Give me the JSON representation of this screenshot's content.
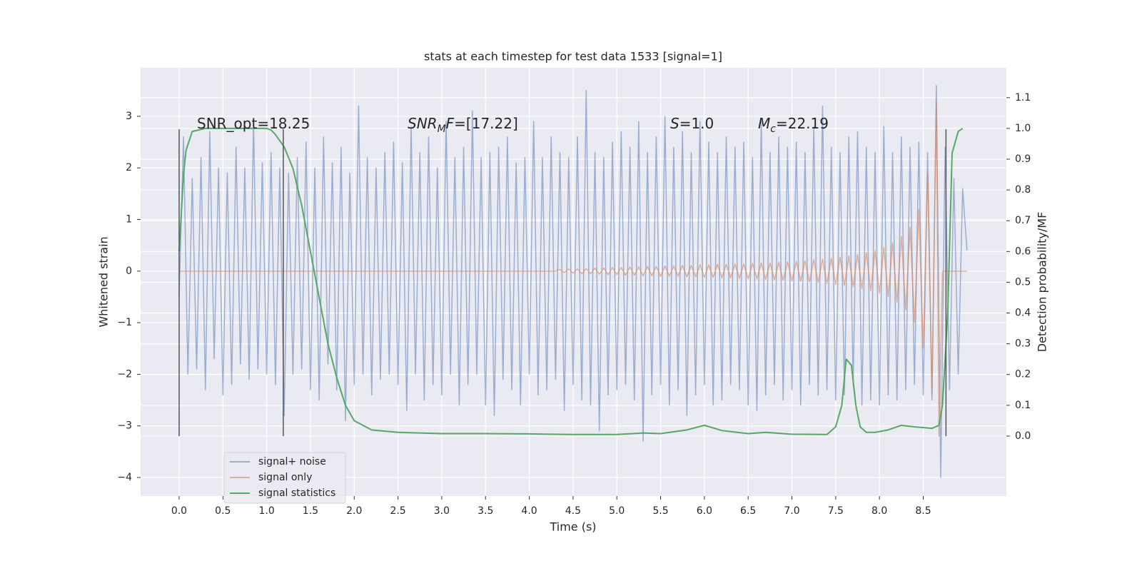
{
  "chart_data": {
    "type": "line",
    "title": "stats at each timestep for test data 1533 [signal=1]",
    "xlabel": "Time (s)",
    "ylabel": "Whitened strain",
    "y2label": "Detection probability/MF",
    "xlim": [
      -0.44,
      9.45
    ],
    "ylim": [
      -4.36,
      3.94
    ],
    "y2lim": [
      -0.195,
      1.197
    ],
    "xticks": [
      {
        "value": 0,
        "label": "0.0"
      },
      0.5,
      {
        "value": 1,
        "label": "1.0"
      },
      1.5,
      {
        "value": 2,
        "label": "2.0"
      },
      2.5,
      {
        "value": 3,
        "label": "3.0"
      },
      3.5,
      {
        "value": 4,
        "label": "4.0"
      },
      4.5,
      {
        "value": 5,
        "label": "5.0"
      },
      5.5,
      {
        "value": 6,
        "label": "6.0"
      },
      6.5,
      {
        "value": 7,
        "label": "7.0"
      },
      7.5,
      {
        "value": 8,
        "label": "8.0"
      },
      8.5
    ],
    "yticks": [
      {
        "value": -4,
        "label": "−4"
      },
      {
        "value": -3,
        "label": "−3"
      },
      {
        "value": -2,
        "label": "−2"
      },
      {
        "value": -1,
        "label": "−1"
      },
      0,
      1,
      2,
      3
    ],
    "y2ticks": [
      {
        "value": 0,
        "label": "0.0"
      },
      0.1,
      0.2,
      0.3,
      0.4,
      0.5,
      0.6,
      0.7,
      0.8,
      0.9,
      {
        "value": 1,
        "label": "1.0"
      },
      1.1
    ],
    "grid": true,
    "background": "#eaeaf2",
    "legend": "lower left",
    "series": [
      {
        "name": "signal+ noise",
        "color": "#4c72b0",
        "opacity": 0.5,
        "x": [
          0,
          0.05,
          0.1,
          0.15,
          0.2,
          0.25,
          0.3,
          0.35,
          0.4,
          0.45,
          0.5,
          0.55,
          0.6,
          0.65,
          0.7,
          0.75,
          0.8,
          0.85,
          0.9,
          0.95,
          1,
          1.05,
          1.1,
          1.15,
          1.2,
          1.25,
          1.3,
          1.35,
          1.4,
          1.45,
          1.5,
          1.55,
          1.6,
          1.65,
          1.7,
          1.75,
          1.8,
          1.85,
          1.9,
          1.95,
          2,
          2.05,
          2.1,
          2.15,
          2.2,
          2.25,
          2.3,
          2.35,
          2.4,
          2.45,
          2.5,
          2.55,
          2.6,
          2.65,
          2.7,
          2.75,
          2.8,
          2.85,
          2.9,
          2.95,
          3,
          3.05,
          3.1,
          3.15,
          3.2,
          3.25,
          3.3,
          3.35,
          3.4,
          3.45,
          3.5,
          3.55,
          3.6,
          3.65,
          3.7,
          3.75,
          3.8,
          3.85,
          3.9,
          3.95,
          4,
          4.05,
          4.1,
          4.15,
          4.2,
          4.25,
          4.3,
          4.35,
          4.4,
          4.45,
          4.5,
          4.55,
          4.6,
          4.65,
          4.7,
          4.75,
          4.8,
          4.85,
          4.9,
          4.95,
          5,
          5.05,
          5.1,
          5.15,
          5.2,
          5.25,
          5.3,
          5.35,
          5.4,
          5.45,
          5.5,
          5.55,
          5.6,
          5.65,
          5.7,
          5.75,
          5.8,
          5.85,
          5.9,
          5.95,
          6,
          6.05,
          6.1,
          6.15,
          6.2,
          6.25,
          6.3,
          6.35,
          6.4,
          6.45,
          6.5,
          6.55,
          6.6,
          6.65,
          6.7,
          6.75,
          6.8,
          6.85,
          6.9,
          6.95,
          7,
          7.05,
          7.1,
          7.15,
          7.2,
          7.25,
          7.3,
          7.35,
          7.4,
          7.45,
          7.5,
          7.55,
          7.6,
          7.65,
          7.7,
          7.75,
          7.8,
          7.85,
          7.9,
          7.95,
          8,
          8.05,
          8.1,
          8.15,
          8.2,
          8.25,
          8.3,
          8.35,
          8.4,
          8.45,
          8.5,
          8.55,
          8.6,
          8.65,
          8.7,
          8.75,
          8.8,
          8.85,
          8.9,
          8.95,
          9
        ],
        "values": [
          -0.5,
          2.6,
          -2.0,
          1.8,
          -1.9,
          2.2,
          -2.3,
          2.7,
          -1.7,
          2.0,
          -2.4,
          1.9,
          -2.2,
          2.4,
          -1.8,
          2.0,
          -2.1,
          2.9,
          -1.9,
          2.1,
          -2.0,
          2.3,
          -2.2,
          2.0,
          -2.8,
          1.9,
          -2.0,
          2.2,
          -1.9,
          2.5,
          -2.3,
          2.0,
          -2.5,
          2.6,
          -1.8,
          2.1,
          -2.3,
          2.4,
          -2.9,
          1.9,
          -2.2,
          3.2,
          -2.0,
          2.2,
          -2.4,
          2.0,
          -2.1,
          2.3,
          -2.0,
          2.5,
          -2.2,
          2.1,
          -2.7,
          2.8,
          -2.0,
          2.3,
          -2.5,
          2.6,
          -2.2,
          2.0,
          -2.4,
          2.9,
          -2.0,
          2.2,
          -2.6,
          2.4,
          -2.2,
          3.1,
          -2.0,
          2.2,
          -2.6,
          2.3,
          -2.8,
          2.4,
          -2.1,
          2.6,
          -2.3,
          2.1,
          -2.6,
          2.2,
          -2.0,
          2.9,
          -2.4,
          2.2,
          -2.3,
          2.6,
          -2.1,
          2.3,
          -2.7,
          2.2,
          -2.2,
          2.6,
          -2.5,
          3.5,
          -2.6,
          2.3,
          -3.1,
          2.2,
          -2.4,
          2.5,
          -2.3,
          2.7,
          -2.2,
          2.4,
          -2.5,
          2.9,
          -3.3,
          2.3,
          -2.4,
          2.6,
          -2.2,
          3.0,
          -2.6,
          2.4,
          -2.3,
          2.7,
          -2.8,
          2.3,
          -2.4,
          2.9,
          -2.2,
          2.5,
          -2.6,
          2.3,
          -2.5,
          2.6,
          -2.2,
          2.4,
          -2.3,
          2.5,
          -2.6,
          2.2,
          -2.7,
          2.9,
          -2.4,
          2.3,
          -2.2,
          2.6,
          -2.5,
          2.4,
          -2.3,
          2.5,
          -2.6,
          2.3,
          -2.2,
          2.8,
          -2.4,
          3.2,
          -2.3,
          2.4,
          -2.5,
          2.3,
          -2.4,
          2.6,
          -2.2,
          2.7,
          -2.6,
          2.4,
          -2.5,
          2.3,
          -2.6,
          2.8,
          -2.4,
          2.3,
          -2.5,
          2.6,
          -2.3,
          2.4,
          -2.2,
          2.5,
          -2.4,
          2.3,
          -2.5,
          3.6,
          -4.0,
          2.4,
          -2.3,
          1.8,
          -2.0,
          1.6,
          0.4
        ]
      },
      {
        "name": "signal only",
        "color": "#dd8452",
        "opacity": 0.6,
        "x": [
          0,
          4.3,
          4.35,
          4.4,
          4.45,
          4.5,
          4.55,
          4.6,
          4.65,
          4.7,
          4.75,
          4.8,
          4.85,
          4.9,
          4.95,
          5,
          5.05,
          5.1,
          5.15,
          5.2,
          5.25,
          5.3,
          5.35,
          5.4,
          5.45,
          5.5,
          5.55,
          5.6,
          5.65,
          5.7,
          5.75,
          5.8,
          5.85,
          5.9,
          5.95,
          6,
          6.05,
          6.1,
          6.15,
          6.2,
          6.25,
          6.3,
          6.35,
          6.4,
          6.45,
          6.5,
          6.55,
          6.6,
          6.65,
          6.7,
          6.75,
          6.8,
          6.85,
          6.9,
          6.95,
          7,
          7.05,
          7.1,
          7.15,
          7.2,
          7.25,
          7.3,
          7.35,
          7.4,
          7.45,
          7.5,
          7.55,
          7.6,
          7.65,
          7.7,
          7.75,
          7.8,
          7.85,
          7.9,
          7.95,
          8,
          8.05,
          8.1,
          8.15,
          8.2,
          8.25,
          8.3,
          8.35,
          8.4,
          8.45,
          8.5,
          8.55,
          8.6,
          8.65,
          8.68,
          8.72,
          9
        ],
        "values": [
          0,
          0,
          0.03,
          -0.03,
          0.04,
          -0.04,
          0.04,
          -0.05,
          0.05,
          -0.05,
          0.06,
          -0.06,
          0.06,
          -0.07,
          0.07,
          -0.07,
          0.07,
          -0.08,
          0.08,
          -0.08,
          0.08,
          -0.09,
          0.09,
          -0.09,
          0.09,
          -0.1,
          0.1,
          -0.1,
          0.1,
          -0.1,
          0.11,
          -0.11,
          0.11,
          -0.11,
          0.12,
          -0.12,
          0.12,
          -0.12,
          0.13,
          -0.13,
          0.13,
          -0.13,
          0.14,
          -0.14,
          0.14,
          -0.15,
          0.15,
          -0.15,
          0.16,
          -0.16,
          0.16,
          -0.17,
          0.17,
          -0.18,
          0.18,
          -0.19,
          0.19,
          -0.2,
          0.2,
          -0.21,
          0.22,
          -0.22,
          0.23,
          -0.24,
          0.25,
          -0.26,
          0.27,
          -0.28,
          0.29,
          -0.3,
          0.32,
          -0.34,
          0.36,
          -0.38,
          0.4,
          -0.43,
          0.46,
          -0.5,
          0.55,
          -0.6,
          0.67,
          -0.75,
          0.85,
          -1.0,
          1.2,
          -1.5,
          1.9,
          -2.4,
          3.3,
          -3.2,
          0,
          0
        ]
      },
      {
        "name": "signal statistics",
        "color": "#55a868",
        "opacity": 1,
        "axis": "y2",
        "x": [
          0,
          0.05,
          0.08,
          0.15,
          0.3,
          1.0,
          1.05,
          1.1,
          1.2,
          1.3,
          1.4,
          1.5,
          1.6,
          1.7,
          1.8,
          1.9,
          2.0,
          2.2,
          2.5,
          3.0,
          3.5,
          4.0,
          4.5,
          5.0,
          5.3,
          5.5,
          5.8,
          6.0,
          6.2,
          6.5,
          6.7,
          7.0,
          7.4,
          7.5,
          7.57,
          7.62,
          7.68,
          7.73,
          7.78,
          7.85,
          7.95,
          8.1,
          8.25,
          8.4,
          8.6,
          8.68,
          8.72,
          8.78,
          8.83,
          8.9,
          8.95
        ],
        "values": [
          0.6,
          0.85,
          0.93,
          0.99,
          1.0,
          1.0,
          0.995,
          0.98,
          0.94,
          0.87,
          0.75,
          0.6,
          0.45,
          0.3,
          0.19,
          0.1,
          0.05,
          0.02,
          0.012,
          0.008,
          0.008,
          0.007,
          0.005,
          0.005,
          0.01,
          0.008,
          0.02,
          0.035,
          0.018,
          0.008,
          0.012,
          0.006,
          0.005,
          0.03,
          0.1,
          0.25,
          0.23,
          0.1,
          0.03,
          0.012,
          0.012,
          0.02,
          0.035,
          0.03,
          0.025,
          0.035,
          0.1,
          0.4,
          0.92,
          0.99,
          1.0
        ]
      }
    ],
    "vlines": {
      "x": [
        0,
        1.19,
        8.76
      ],
      "ymin": -3.2,
      "ymax": 2.75,
      "color": "#555555"
    },
    "annotations": [
      {
        "parts": [
          "SNR_opt=18.25"
        ]
      },
      {
        "parts": [
          "SNR",
          "M",
          "F",
          "=[17.22]"
        ]
      },
      {
        "parts": [
          "S",
          "=1.0"
        ]
      },
      {
        "parts": [
          "M",
          "c",
          "=22.19"
        ]
      }
    ]
  }
}
